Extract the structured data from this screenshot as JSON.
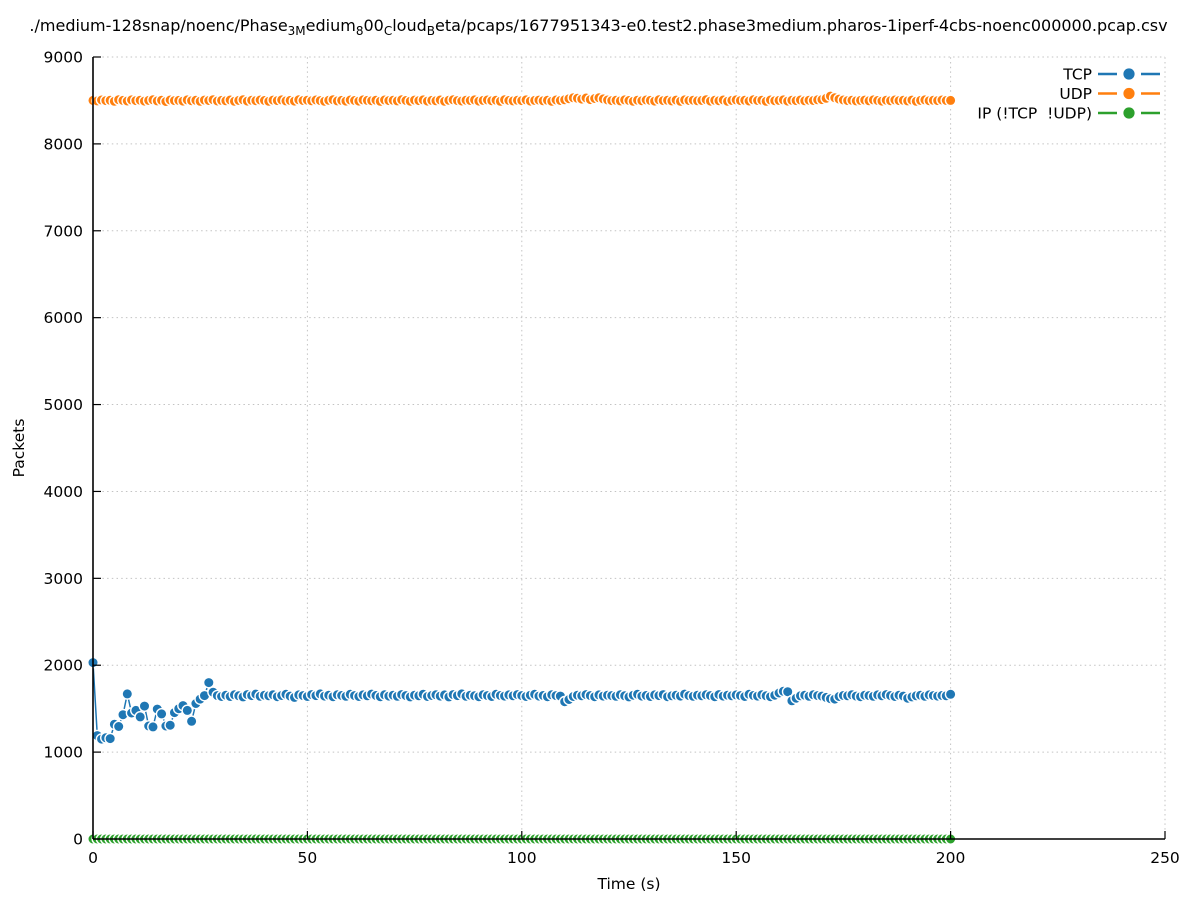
{
  "title": {
    "segments": [
      {
        "text": "./medium-128snap/noenc/Phase"
      },
      {
        "text": "3",
        "sub": true
      },
      {
        "text": "M",
        "sub": true
      },
      {
        "text": "edium"
      },
      {
        "text": "8",
        "sub": true
      },
      {
        "text": "00"
      },
      {
        "text": "C",
        "sub": true
      },
      {
        "text": "loud"
      },
      {
        "text": "B",
        "sub": true
      },
      {
        "text": "eta/pcaps/1677951343-e0.test2.phase3medium.pharos-1iperf-4cbs-noenc000000.pcap.csv"
      }
    ]
  },
  "chart_data": {
    "type": "line",
    "xlabel": "Time (s)",
    "ylabel": "Packets",
    "xlim": [
      0,
      250
    ],
    "ylim": [
      0,
      9000
    ],
    "xticks": [
      0,
      50,
      100,
      150,
      200,
      250
    ],
    "yticks": [
      0,
      1000,
      2000,
      3000,
      4000,
      5000,
      6000,
      7000,
      8000,
      9000
    ],
    "grid": true,
    "grid_style": "dotted",
    "legend_position": "top-right",
    "x_start": 0,
    "x_step": 1,
    "marker": "filled-circle-white-edge",
    "series": [
      {
        "name": "TCP",
        "color": "#1f77b4",
        "values": [
          2030,
          1190,
          1150,
          1165,
          1155,
          1320,
          1295,
          1430,
          1670,
          1450,
          1480,
          1405,
          1530,
          1300,
          1290,
          1495,
          1440,
          1300,
          1310,
          1455,
          1500,
          1535,
          1480,
          1355,
          1560,
          1610,
          1650,
          1800,
          1690,
          1650,
          1640,
          1655,
          1640,
          1660,
          1648,
          1635,
          1662,
          1650,
          1668,
          1642,
          1655,
          1648,
          1660,
          1638,
          1652,
          1665,
          1645,
          1630,
          1658,
          1650,
          1640,
          1662,
          1650,
          1670,
          1645,
          1655,
          1638,
          1660,
          1652,
          1642,
          1665,
          1650,
          1640,
          1658,
          1648,
          1668,
          1652,
          1638,
          1660,
          1645,
          1655,
          1642,
          1662,
          1650,
          1635,
          1655,
          1648,
          1665,
          1640,
          1652,
          1660,
          1645,
          1658,
          1635,
          1662,
          1650,
          1670,
          1642,
          1655,
          1648,
          1638,
          1660,
          1650,
          1640,
          1665,
          1652,
          1645,
          1658,
          1648,
          1662,
          1650,
          1640,
          1655,
          1665,
          1645,
          1652,
          1638,
          1660,
          1650,
          1645,
          1580,
          1605,
          1640,
          1655,
          1648,
          1662,
          1650,
          1638,
          1658,
          1645,
          1655,
          1650,
          1642,
          1660,
          1648,
          1635,
          1655,
          1665,
          1645,
          1652,
          1640,
          1658,
          1650,
          1662,
          1638,
          1648,
          1655,
          1645,
          1668,
          1650,
          1642,
          1655,
          1648,
          1660,
          1650,
          1638,
          1662,
          1645,
          1655,
          1648,
          1658,
          1650,
          1640,
          1665,
          1652,
          1645,
          1660,
          1648,
          1638,
          1655,
          1680,
          1700,
          1695,
          1590,
          1620,
          1648,
          1655,
          1642,
          1660,
          1650,
          1645,
          1630,
          1615,
          1610,
          1640,
          1652,
          1648,
          1660,
          1645,
          1638,
          1655,
          1650,
          1642,
          1658,
          1648,
          1662,
          1650,
          1640,
          1655,
          1645,
          1620,
          1635,
          1648,
          1655,
          1642,
          1658,
          1650,
          1645,
          1652,
          1648,
          1665
        ]
      },
      {
        "name": "UDP",
        "color": "#ff7f0e",
        "values": [
          8500,
          8495,
          8505,
          8498,
          8502,
          8490,
          8508,
          8500,
          8494,
          8506,
          8498,
          8503,
          8492,
          8500,
          8507,
          8495,
          8502,
          8488,
          8505,
          8498,
          8500,
          8493,
          8506,
          8497,
          8502,
          8490,
          8504,
          8499,
          8508,
          8494,
          8501,
          8496,
          8505,
          8490,
          8500,
          8507,
          8493,
          8502,
          8497,
          8505,
          8499,
          8490,
          8504,
          8498,
          8506,
          8495,
          8500,
          8492,
          8507,
          8499,
          8503,
          8496,
          8505,
          8498,
          8490,
          8502,
          8508,
          8495,
          8500,
          8493,
          8505,
          8499,
          8492,
          8506,
          8500,
          8497,
          8503,
          8490,
          8505,
          8498,
          8502,
          8495,
          8507,
          8499,
          8491,
          8504,
          8498,
          8506,
          8493,
          8500,
          8496,
          8505,
          8490,
          8502,
          8507,
          8498,
          8494,
          8503,
          8499,
          8506,
          8492,
          8500,
          8505,
          8497,
          8503,
          8490,
          8507,
          8499,
          8495,
          8502,
          8498,
          8506,
          8493,
          8500,
          8504,
          8496,
          8502,
          8490,
          8505,
          8499,
          8507,
          8520,
          8530,
          8525,
          8515,
          8528,
          8510,
          8522,
          8530,
          8518,
          8505,
          8498,
          8502,
          8495,
          8506,
          8499,
          8490,
          8503,
          8497,
          8505,
          8500,
          8493,
          8507,
          8498,
          8502,
          8495,
          8504,
          8490,
          8506,
          8499,
          8503,
          8496,
          8500,
          8508,
          8493,
          8502,
          8497,
          8505,
          8490,
          8500,
          8506,
          8498,
          8502,
          8494,
          8507,
          8499,
          8503,
          8490,
          8505,
          8497,
          8500,
          8506,
          8493,
          8502,
          8498,
          8505,
          8496,
          8503,
          8499,
          8507,
          8510,
          8525,
          8550,
          8530,
          8515,
          8505,
          8498,
          8502,
          8495,
          8500,
          8504,
          8496,
          8506,
          8499,
          8492,
          8503,
          8497,
          8505,
          8498,
          8502,
          8495,
          8504,
          8490,
          8500,
          8506,
          8497,
          8502,
          8498,
          8505,
          8499,
          8500
        ]
      },
      {
        "name": "IP (!TCP  !UDP)",
        "color": "#2ca02c",
        "values_constant": 0,
        "n_points": 201
      }
    ]
  }
}
